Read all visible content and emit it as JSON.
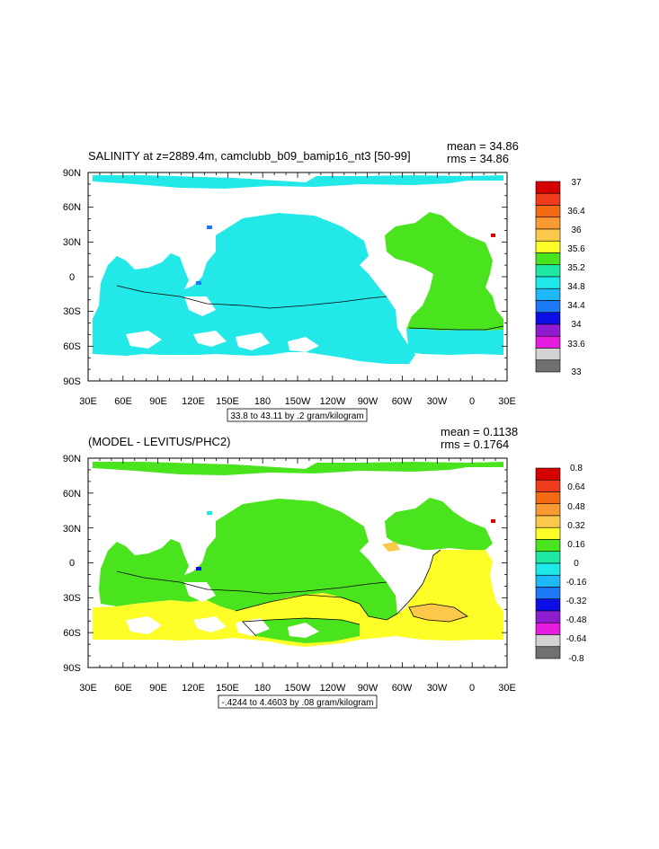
{
  "panels": [
    {
      "title_left": "SALINITY at z=2889.4m, camclubb_b09_bamip16_nt3 [50-99]",
      "title_right_1": "mean = 34.86",
      "title_right_2": "rms = 34.86",
      "lat_labels": [
        "90N",
        "60N",
        "30N",
        "0",
        "30S",
        "60S",
        "90S"
      ],
      "lon_labels": [
        "30E",
        "60E",
        "90E",
        "120E",
        "150E",
        "180",
        "150W",
        "120W",
        "90W",
        "60W",
        "30W",
        "0",
        "30E"
      ],
      "info_box": "33.8 to 43.11 by .2 gram/kilogram",
      "colorbar": {
        "colors": [
          "#d50000",
          "#ef3b1c",
          "#f36a13",
          "#f99a32",
          "#fbc84a",
          "#fdfd27",
          "#4ae41e",
          "#1ee8a2",
          "#1ee8e8",
          "#1fb8fa",
          "#1c78f5",
          "#0c0ee6",
          "#8f1cd0",
          "#e61ce0",
          "#d2d2d2",
          "#707070"
        ],
        "labels": [
          "37",
          "36.4",
          "36",
          "35.6",
          "35.2",
          "34.8",
          "34.4",
          "34",
          "33.6",
          "33"
        ]
      },
      "ocean_color": "#22e8e8",
      "atlantic_color": "#4ae41e"
    },
    {
      "title_left": "(MODEL - LEVITUS/PHC2)",
      "title_right_1": "mean = 0.1138",
      "title_right_2": "rms = 0.1764",
      "lat_labels": [
        "90N",
        "60N",
        "30N",
        "0",
        "30S",
        "60S",
        "90S"
      ],
      "lon_labels": [
        "30E",
        "60E",
        "90E",
        "120E",
        "150E",
        "180",
        "150W",
        "120W",
        "90W",
        "60W",
        "30W",
        "0",
        "30E"
      ],
      "info_box": "-.4244 to 4.4603 by .08 gram/kilogram",
      "colorbar": {
        "colors": [
          "#d50000",
          "#ef3b1c",
          "#f36a13",
          "#f99a32",
          "#fbc84a",
          "#fdfd27",
          "#4ae41e",
          "#1ee8a2",
          "#1ee8e8",
          "#1fb8fa",
          "#1c78f5",
          "#0c0ee6",
          "#8f1cd0",
          "#e61ce0",
          "#d2d2d2",
          "#707070"
        ],
        "labels": [
          "0.8",
          "0.64",
          "0.48",
          "0.32",
          "0.16",
          "0",
          "-0.16",
          "-0.32",
          "-0.48",
          "-0.64",
          "-0.8"
        ]
      },
      "ocean_color": "#4ae41e",
      "south_color": "#fdfd27"
    }
  ]
}
